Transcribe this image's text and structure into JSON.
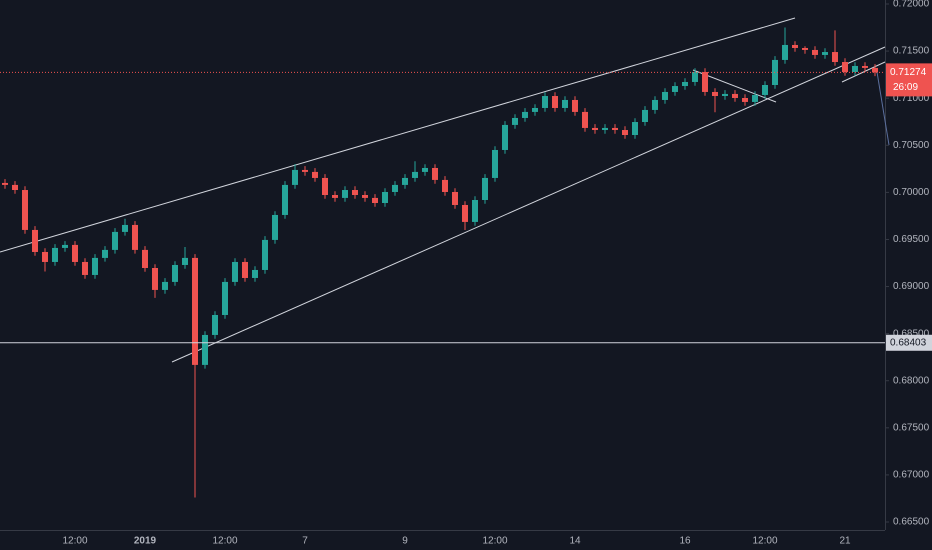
{
  "chart_data": {
    "type": "candlestick",
    "categories": [
      null,
      null,
      null,
      null,
      null,
      null,
      null,
      "12:00",
      null,
      null,
      null,
      null,
      null,
      null,
      "2019",
      null,
      null,
      null,
      null,
      null,
      null,
      null,
      "12:00",
      null,
      null,
      null,
      null,
      null,
      null,
      null,
      "7",
      null,
      null,
      null,
      null,
      null,
      null,
      null,
      null,
      null,
      "9",
      null,
      null,
      null,
      null,
      null,
      null,
      null,
      null,
      "12:00",
      null,
      null,
      null,
      null,
      null,
      null,
      null,
      "14",
      null,
      null,
      null,
      null,
      null,
      null,
      null,
      null,
      null,
      null,
      "16",
      null,
      null,
      null,
      null,
      null,
      null,
      null,
      "12:00",
      null,
      null,
      null,
      null,
      null,
      null,
      null,
      "21",
      null,
      null,
      null
    ],
    "bold_categories": [
      "2019"
    ],
    "open": [
      0.701,
      0.70079,
      0.70025,
      0.69601,
      0.69367,
      0.69261,
      0.6941,
      0.69442,
      0.69261,
      0.69123,
      0.69304,
      0.69389,
      0.6958,
      0.69654,
      0.69389,
      0.69197,
      0.68964,
      0.69049,
      0.69229,
      0.69304,
      0.68168,
      0.68486,
      0.68698,
      0.69049,
      0.69261,
      0.69091,
      0.69176,
      0.69495,
      0.6976,
      0.70079,
      0.70238,
      0.70217,
      0.70153,
      0.69972,
      0.69941,
      0.70025,
      0.69972,
      0.69941,
      0.69887,
      0.70004,
      0.70079,
      0.70153,
      0.70217,
      0.70259,
      0.70132,
      0.70004,
      0.69866,
      0.69686,
      0.69919,
      0.70153,
      0.7045,
      0.70716,
      0.7079,
      0.70854,
      0.70896,
      0.71023,
      0.70896,
      0.70981,
      0.70854,
      0.70684,
      0.70662,
      0.70684,
      0.70662,
      0.70609,
      0.70747,
      0.70875,
      0.70981,
      0.71066,
      0.71129,
      0.71172,
      0.71278,
      0.71066,
      0.71023,
      0.71045,
      0.71002,
      0.7096,
      0.71034,
      0.7114,
      0.71406,
      0.71565,
      0.71533,
      0.71512,
      0.71459,
      0.7149,
      0.71384,
      0.71278,
      0.71342,
      0.71321
    ],
    "high": [
      0.7014,
      0.70119,
      0.70065,
      0.69641,
      0.69407,
      0.6945,
      0.69482,
      0.69482,
      0.69301,
      0.69344,
      0.69429,
      0.6962,
      0.6972,
      0.69694,
      0.69429,
      0.69237,
      0.69089,
      0.69269,
      0.6942,
      0.69344,
      0.68526,
      0.68738,
      0.69089,
      0.69301,
      0.69301,
      0.69216,
      0.69535,
      0.698,
      0.70119,
      0.703,
      0.70278,
      0.70257,
      0.70193,
      0.70012,
      0.70065,
      0.70065,
      0.70012,
      0.69981,
      0.70044,
      0.70119,
      0.70193,
      0.7033,
      0.70299,
      0.70299,
      0.70172,
      0.70044,
      0.69906,
      0.69959,
      0.70193,
      0.7049,
      0.70756,
      0.7083,
      0.70894,
      0.70936,
      0.71063,
      0.71063,
      0.71021,
      0.71021,
      0.70894,
      0.70724,
      0.70724,
      0.70724,
      0.70702,
      0.70787,
      0.70915,
      0.71021,
      0.71106,
      0.71169,
      0.71212,
      0.71318,
      0.71318,
      0.71106,
      0.71085,
      0.71085,
      0.71042,
      0.71074,
      0.7118,
      0.71446,
      0.7175,
      0.71605,
      0.71552,
      0.71552,
      0.7153,
      0.7172,
      0.71424,
      0.71382,
      0.71382,
      0.71361
    ],
    "low": [
      0.70039,
      0.69985,
      0.69561,
      0.69327,
      0.6916,
      0.69221,
      0.6937,
      0.69221,
      0.69083,
      0.69083,
      0.69264,
      0.69349,
      0.6954,
      0.69349,
      0.69157,
      0.6888,
      0.68924,
      0.69009,
      0.69189,
      0.6676,
      0.68128,
      0.68446,
      0.68658,
      0.69009,
      0.69051,
      0.69051,
      0.69136,
      0.69455,
      0.6972,
      0.70039,
      0.70177,
      0.70113,
      0.69932,
      0.69901,
      0.69901,
      0.69932,
      0.69901,
      0.69847,
      0.69847,
      0.69964,
      0.70039,
      0.70113,
      0.70177,
      0.70092,
      0.69964,
      0.69826,
      0.696,
      0.69646,
      0.69879,
      0.70113,
      0.7041,
      0.70676,
      0.7075,
      0.70814,
      0.70856,
      0.70856,
      0.70856,
      0.70814,
      0.70644,
      0.70622,
      0.70622,
      0.70622,
      0.70569,
      0.70569,
      0.70707,
      0.70835,
      0.70941,
      0.71026,
      0.71089,
      0.71132,
      0.71026,
      0.7085,
      0.70983,
      0.70962,
      0.7092,
      0.7092,
      0.70994,
      0.711,
      0.71366,
      0.71493,
      0.71472,
      0.71419,
      0.71419,
      0.71344,
      0.71238,
      0.71238,
      0.71281,
      0.71234
    ],
    "close": [
      0.70079,
      0.70025,
      0.69601,
      0.69367,
      0.69261,
      0.6941,
      0.69442,
      0.69261,
      0.69123,
      0.69304,
      0.69389,
      0.6958,
      0.69654,
      0.69389,
      0.69197,
      0.68964,
      0.69049,
      0.69229,
      0.69304,
      0.68168,
      0.68486,
      0.68698,
      0.69049,
      0.69261,
      0.69091,
      0.69176,
      0.69495,
      0.6976,
      0.70079,
      0.70238,
      0.70217,
      0.70153,
      0.69972,
      0.69941,
      0.70025,
      0.69972,
      0.69941,
      0.69887,
      0.70004,
      0.70079,
      0.70153,
      0.70217,
      0.70259,
      0.70132,
      0.70004,
      0.69866,
      0.69686,
      0.69919,
      0.70153,
      0.7045,
      0.70716,
      0.7079,
      0.70854,
      0.70896,
      0.71023,
      0.70896,
      0.70981,
      0.70854,
      0.70684,
      0.70662,
      0.70684,
      0.70662,
      0.70609,
      0.70747,
      0.70875,
      0.70981,
      0.71066,
      0.71129,
      0.71172,
      0.71278,
      0.71066,
      0.71023,
      0.71045,
      0.71002,
      0.7096,
      0.71034,
      0.7114,
      0.71406,
      0.71565,
      0.71533,
      0.71512,
      0.71459,
      0.7149,
      0.71384,
      0.71278,
      0.71342,
      0.71321,
      0.71274
    ],
    "up_color": "#26a69a",
    "down_color": "#ef5350",
    "ylim": [
      0.665,
      0.72
    ],
    "yticks": [
      {
        "value": 0.665,
        "label": "0.66500"
      },
      {
        "value": 0.67,
        "label": "0.67000"
      },
      {
        "value": 0.675,
        "label": "0.67500"
      },
      {
        "value": 0.68,
        "label": "0.68000"
      },
      {
        "value": 0.685,
        "label": "0.68500"
      },
      {
        "value": 0.69,
        "label": "0.69000"
      },
      {
        "value": 0.695,
        "label": "0.69500"
      },
      {
        "value": 0.7,
        "label": "0.70000"
      },
      {
        "value": 0.705,
        "label": "0.70500"
      },
      {
        "value": 0.71,
        "label": "0.71000"
      },
      {
        "value": 0.715,
        "label": "0.71500"
      },
      {
        "value": 0.72,
        "label": "0.72000"
      }
    ],
    "current_price": 0.71274,
    "countdown": "26:09",
    "level": 0.68403
  }
}
